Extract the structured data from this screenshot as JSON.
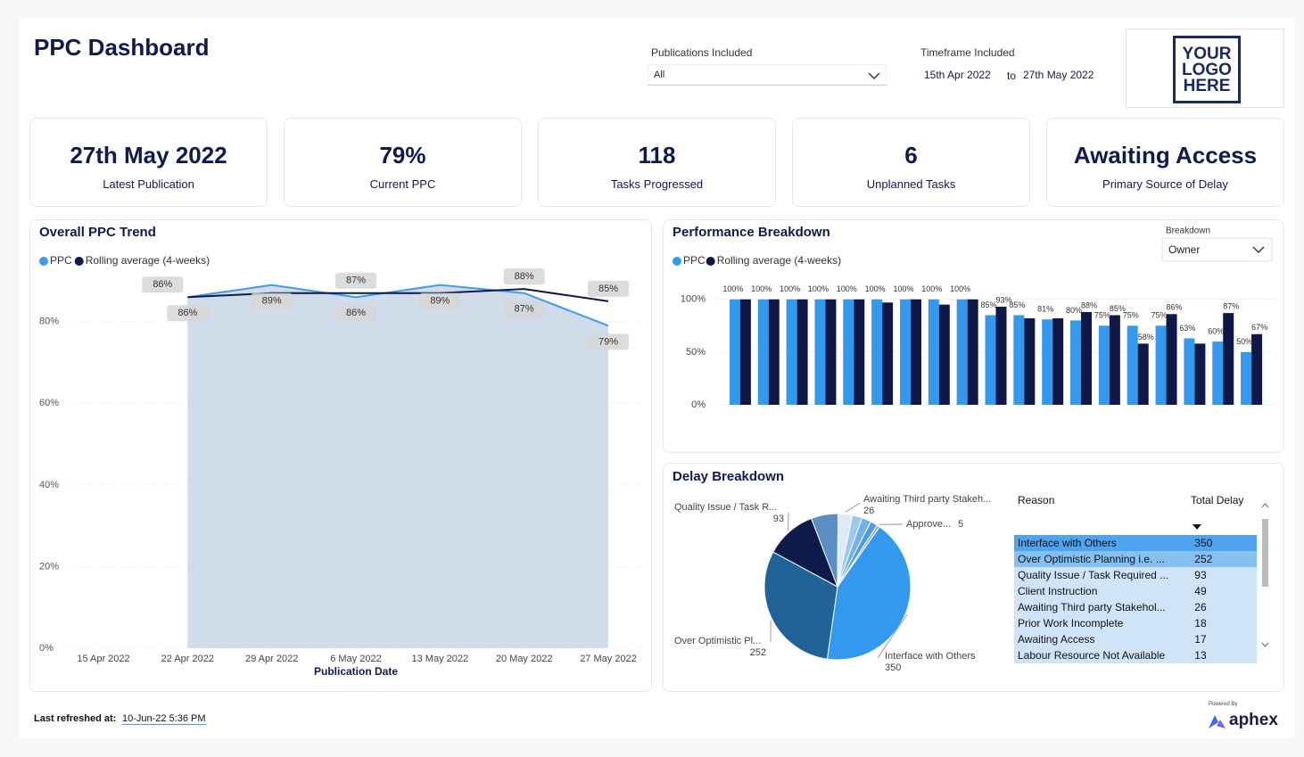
{
  "header": {
    "title": "PPC Dashboard",
    "logo": [
      "YOUR",
      "LOGO",
      "HERE"
    ]
  },
  "filters": {
    "publications": {
      "label": "Publications Included",
      "value": "All"
    },
    "timeframe": {
      "label": "Timeframe Included",
      "from": "15th Apr 2022",
      "separator": "to",
      "to": "27th May 2022"
    }
  },
  "kpis": [
    {
      "value": "27th May 2022",
      "label": "Latest Publication"
    },
    {
      "value": "79%",
      "label": "Current PPC"
    },
    {
      "value": 118,
      "label": "Tasks Progressed"
    },
    {
      "value": 6,
      "label": "Unplanned Tasks"
    },
    {
      "value": "Awaiting Access",
      "label": "Primary Source of Delay"
    }
  ],
  "chart_data": [
    {
      "type": "line",
      "title": "Overall PPC Trend",
      "x_axis_label": "Publication Date",
      "categories": [
        "15 Apr 2022",
        "22 Apr 2022",
        "29 Apr 2022",
        "6 May 2022",
        "13 May 2022",
        "20 May 2022",
        "27 May 2022"
      ],
      "series": [
        {
          "name": "PPC",
          "color": "#3d9cec",
          "values": [
            null,
            86,
            89,
            86,
            89,
            87,
            79
          ],
          "value_labels": [
            null,
            "86%",
            "89%",
            "86%",
            "89%",
            "87%",
            "79%"
          ]
        },
        {
          "name": "Rolling average (4-weeks)",
          "color": "#12194a",
          "values": [
            null,
            86,
            87,
            87,
            87,
            88,
            85
          ],
          "value_labels": [
            null,
            "86%",
            null,
            "87%",
            null,
            "88%",
            "85%"
          ]
        }
      ],
      "area_color": "#d0dcea",
      "ylim": [
        0,
        90
      ],
      "yticks": [
        {
          "value": 0,
          "label": "0%"
        },
        {
          "value": 20,
          "label": "20%"
        },
        {
          "value": 40,
          "label": "40%"
        },
        {
          "value": 60,
          "label": "60%"
        },
        {
          "value": 80,
          "label": "80%"
        }
      ],
      "grid": true
    },
    {
      "type": "bar",
      "title": "Performance Breakdown",
      "control": {
        "label": "Breakdown",
        "value": "Owner"
      },
      "categories": [
        null,
        null,
        null,
        null,
        null,
        null,
        null,
        null,
        null,
        null,
        null,
        null,
        null,
        null,
        null,
        null,
        null,
        null,
        null
      ],
      "series": [
        {
          "name": "PPC",
          "color": "#3399ee",
          "values": [
            100,
            100,
            100,
            100,
            100,
            100,
            100,
            100,
            100,
            85,
            85,
            81,
            80,
            75,
            75,
            75,
            63,
            60,
            50
          ],
          "value_labels": [
            "100%",
            "100%",
            "100%",
            "100%",
            "100%",
            "100%",
            "100%",
            "100%",
            "100%",
            "85%",
            "85%",
            "81%",
            "80%",
            "75%",
            "75%",
            "75%",
            "63%",
            "60%",
            "50%"
          ]
        },
        {
          "name": "Rolling average (4-weeks)",
          "color": "#0f1848",
          "values": [
            100,
            100,
            100,
            100,
            100,
            97,
            100,
            95,
            100,
            93,
            82,
            82,
            88,
            85,
            58,
            86,
            58,
            87,
            67
          ],
          "value_labels": [
            null,
            null,
            null,
            null,
            null,
            null,
            null,
            null,
            null,
            "93%",
            null,
            null,
            "88%",
            "85%",
            "58%",
            "86%",
            null,
            "87%",
            "67%"
          ]
        }
      ],
      "ylim": [
        0,
        115
      ],
      "yticks": [
        {
          "value": 0,
          "label": "0%"
        },
        {
          "value": 50,
          "label": "50%"
        },
        {
          "value": 100,
          "label": "100%"
        }
      ],
      "grid": true
    },
    {
      "type": "pie",
      "title": "Delay Breakdown",
      "categories": [
        "Interface with Others",
        "Over Optimistic Pl...",
        "Quality Issue / Task R...",
        null,
        "Awaiting Third party Stakeh...",
        null,
        null,
        null,
        "Approve..."
      ],
      "values": [
        350,
        252,
        93,
        49,
        26,
        18,
        17,
        13,
        5
      ],
      "colors": [
        "#3399ee",
        "#1f6399",
        "#0d1b4a",
        "#5b8fc4",
        "#dfeaf6",
        "#9ec8f0",
        "#6fb1e8",
        "#4a9ee0",
        "#9aa5ad"
      ]
    }
  ],
  "delay_table": {
    "columns": [
      "Reason",
      "Total Delay"
    ],
    "rows": [
      [
        "Interface with Others",
        350
      ],
      [
        "Over Optimistic Planning i.e. ...",
        252
      ],
      [
        "Quality Issue / Task Required ...",
        93
      ],
      [
        "Client Instruction",
        49
      ],
      [
        "Awaiting Third party Stakehol...",
        26
      ],
      [
        "Prior Work Incomplete",
        18
      ],
      [
        "Awaiting Access",
        17
      ],
      [
        "Labour Resource Not Available",
        13
      ]
    ]
  },
  "footer": {
    "refreshed_label": "Last refreshed at:",
    "refreshed_value": "10-Jun-22 5:36 PM",
    "powered_by": "Powered By",
    "brand": "aphex"
  }
}
